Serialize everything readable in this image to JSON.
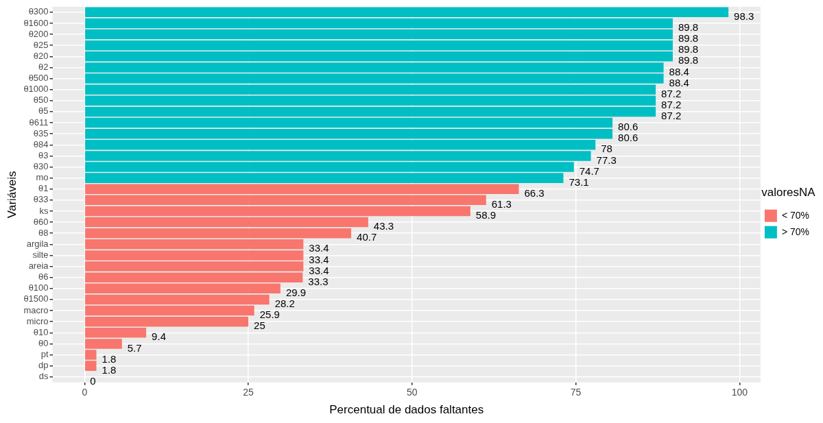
{
  "chart_data": {
    "type": "bar",
    "orientation": "horizontal",
    "xlabel": "Percentual de dados faltantes",
    "ylabel": "Variáveis",
    "legend_title": "valoresNA",
    "legend": "right",
    "grid": true,
    "data_labels": true,
    "categories": [
      "θ300",
      "θ1600",
      "θ200",
      "θ25",
      "θ20",
      "θ2",
      "θ500",
      "θ1000",
      "θ50",
      "θ5",
      "θ611",
      "θ35",
      "θ84",
      "θ3",
      "θ30",
      "mo",
      "θ1",
      "θ33",
      "ks",
      "θ60",
      "θ8",
      "argila",
      "silte",
      "areia",
      "θ6",
      "θ100",
      "θ1500",
      "macro",
      "micro",
      "θ10",
      "θ0",
      "pt",
      "dp",
      "ds"
    ],
    "xlim": [
      -4.9,
      103.2
    ],
    "xticks": [
      0,
      25,
      50,
      75,
      100
    ],
    "series": [
      {
        "name": "< 70%",
        "color": "#f8766d",
        "values": [
          null,
          null,
          null,
          null,
          null,
          null,
          null,
          null,
          null,
          null,
          null,
          null,
          null,
          null,
          null,
          null,
          66.3,
          61.3,
          58.9,
          43.3,
          40.7,
          33.4,
          33.4,
          33.4,
          33.3,
          29.9,
          28.2,
          25.9,
          25,
          9.4,
          5.7,
          1.8,
          1.8,
          0
        ]
      },
      {
        "name": "> 70%",
        "color": "#00bfc4",
        "values": [
          98.3,
          89.8,
          89.8,
          89.8,
          89.8,
          88.4,
          88.4,
          87.2,
          87.2,
          87.2,
          80.6,
          80.6,
          78,
          77.3,
          74.7,
          73.1,
          null,
          null,
          null,
          null,
          null,
          null,
          null,
          null,
          null,
          null,
          null,
          null,
          null,
          null,
          null,
          null,
          null,
          null
        ]
      }
    ]
  }
}
